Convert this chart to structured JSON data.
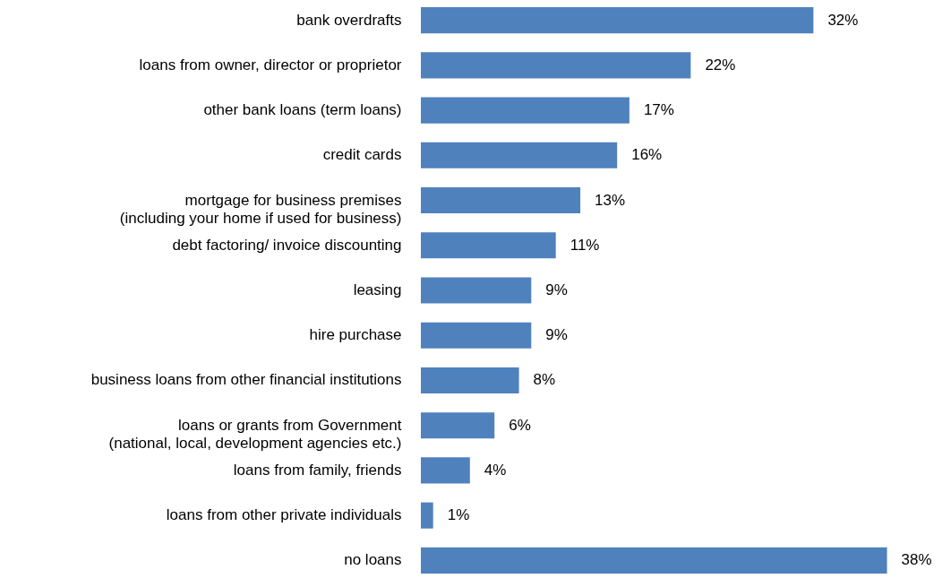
{
  "chart_data": {
    "type": "bar",
    "orientation": "horizontal",
    "categories": [
      "bank overdrafts",
      "loans from owner, director or proprietor",
      "other bank loans (term loans)",
      "credit cards",
      "mortgage for business premises\n(including your home if used for business)",
      "debt factoring/ invoice discounting",
      "leasing",
      "hire purchase",
      "business loans from other financial institutions",
      "loans or grants from Government\n(national, local, development agencies etc.)",
      "loans from family, friends",
      "loans from other private individuals",
      "no loans"
    ],
    "values": [
      32,
      22,
      17,
      16,
      13,
      11,
      9,
      9,
      8,
      6,
      4,
      1,
      38
    ],
    "value_labels": [
      "32%",
      "22%",
      "17%",
      "16%",
      "13%",
      "11%",
      "9%",
      "9%",
      "8%",
      "6%",
      "4%",
      "1%",
      "38%"
    ],
    "color": "#4f81bd"
  }
}
